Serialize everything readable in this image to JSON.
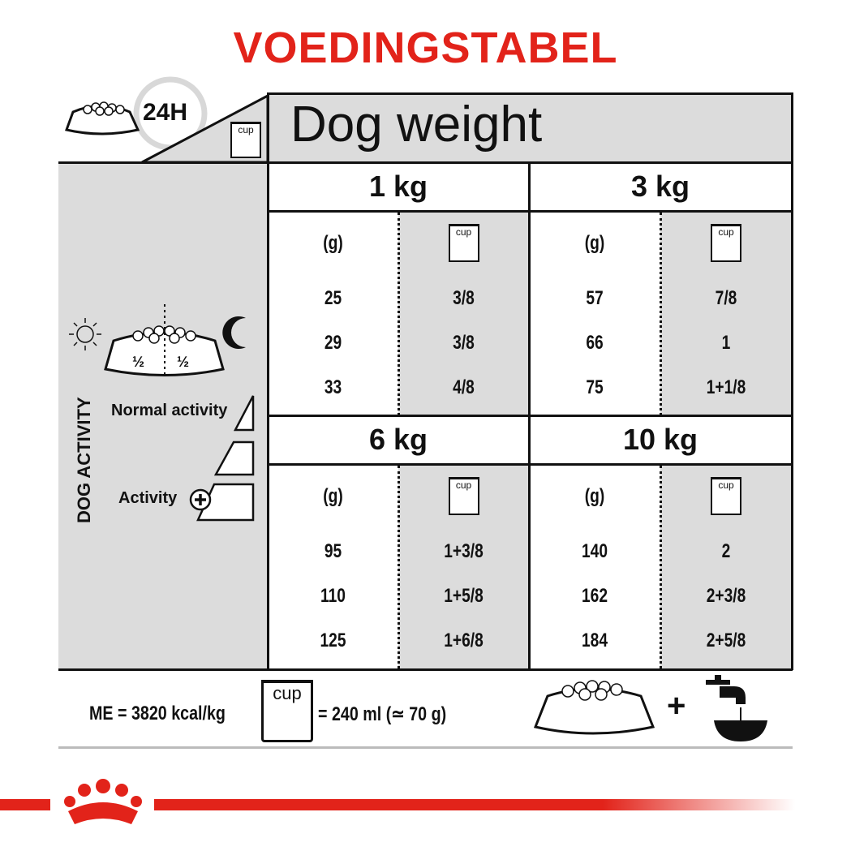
{
  "title": "VOEDINGSTABEL",
  "header": {
    "duration": "24H",
    "cup_label": "cup",
    "weight_title": "Dog weight"
  },
  "left_panel": {
    "portion_left": "½",
    "portion_right": "½",
    "activity_title": "DOG ACTIVITY",
    "normal_activity": "Normal activity",
    "activity_plus": "Activity"
  },
  "columns": {
    "grams_label": "(g)",
    "cup_label": "cup"
  },
  "weights": [
    {
      "label": "1 kg",
      "rows": [
        [
          "25",
          "3/8"
        ],
        [
          "29",
          "3/8"
        ],
        [
          "33",
          "4/8"
        ]
      ]
    },
    {
      "label": "3 kg",
      "rows": [
        [
          "57",
          "7/8"
        ],
        [
          "66",
          "1"
        ],
        [
          "75",
          "1+1/8"
        ]
      ]
    },
    {
      "label": "6 kg",
      "rows": [
        [
          "95",
          "1+3/8"
        ],
        [
          "110",
          "1+5/8"
        ],
        [
          "125",
          "1+6/8"
        ]
      ]
    },
    {
      "label": "10 kg",
      "rows": [
        [
          "140",
          "2"
        ],
        [
          "162",
          "2+3/8"
        ],
        [
          "184",
          "2+5/8"
        ]
      ]
    }
  ],
  "footer": {
    "energy": "ME = 3820 kcal/kg",
    "cup_label": "cup",
    "cup_equivalence": "= 240 ml (≃ 70 g)",
    "plus": "+"
  },
  "colors": {
    "brand_red": "#e2231a",
    "panel_gray": "#dcdcdc",
    "line": "#111111"
  }
}
